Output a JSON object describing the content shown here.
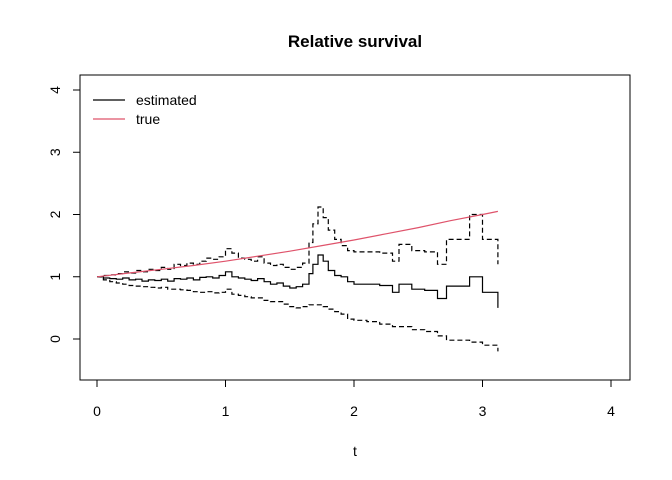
{
  "chart_data": {
    "type": "line",
    "title": "Relative survival",
    "xlabel": "t",
    "ylabel": "",
    "xlim": [
      0,
      4
    ],
    "ylim": [
      -0.6,
      4.2
    ],
    "x_ticks": [
      "0",
      "1",
      "2",
      "3",
      "4"
    ],
    "y_ticks": [
      "0",
      "1",
      "2",
      "3",
      "4"
    ],
    "grid": false,
    "legend_position": "top-left",
    "colors": {
      "estimated": "#000000",
      "true": "#DF536B",
      "ci": "#000000"
    },
    "legend": [
      {
        "name": "estimated",
        "color": "#000000",
        "style": "solid"
      },
      {
        "name": "true",
        "color": "#DF536B",
        "style": "solid"
      }
    ],
    "series": [
      {
        "name": "estimated",
        "role": "estimate",
        "step": true,
        "dash": false,
        "x": [
          0,
          0.05,
          0.1,
          0.15,
          0.2,
          0.25,
          0.3,
          0.35,
          0.4,
          0.45,
          0.5,
          0.55,
          0.6,
          0.65,
          0.7,
          0.75,
          0.8,
          0.85,
          0.9,
          0.95,
          1.0,
          1.05,
          1.1,
          1.15,
          1.2,
          1.25,
          1.3,
          1.35,
          1.4,
          1.45,
          1.5,
          1.55,
          1.6,
          1.65,
          1.68,
          1.72,
          1.76,
          1.8,
          1.85,
          1.9,
          1.95,
          2.0,
          2.1,
          2.2,
          2.3,
          2.35,
          2.45,
          2.55,
          2.65,
          2.72,
          2.9,
          3.0,
          3.12
        ],
        "y": [
          1.0,
          0.98,
          0.97,
          0.96,
          0.98,
          0.95,
          0.96,
          0.93,
          0.95,
          0.94,
          0.96,
          0.93,
          0.97,
          0.96,
          0.98,
          0.95,
          0.99,
          1.0,
          0.98,
          1.02,
          1.08,
          1.0,
          0.98,
          0.96,
          0.94,
          0.97,
          0.92,
          0.88,
          0.9,
          0.85,
          0.82,
          0.84,
          0.88,
          1.05,
          1.2,
          1.35,
          1.25,
          1.1,
          1.02,
          1.0,
          0.92,
          0.88,
          0.88,
          0.86,
          0.75,
          0.88,
          0.8,
          0.78,
          0.65,
          0.85,
          1.0,
          0.75,
          0.5
        ]
      },
      {
        "name": "upper CI",
        "role": "ci",
        "step": true,
        "dash": true,
        "x": [
          0,
          0.05,
          0.1,
          0.15,
          0.2,
          0.25,
          0.3,
          0.35,
          0.4,
          0.45,
          0.5,
          0.55,
          0.6,
          0.65,
          0.7,
          0.75,
          0.8,
          0.85,
          0.9,
          0.95,
          1.0,
          1.05,
          1.1,
          1.15,
          1.2,
          1.25,
          1.3,
          1.35,
          1.4,
          1.45,
          1.5,
          1.55,
          1.6,
          1.65,
          1.68,
          1.72,
          1.76,
          1.8,
          1.85,
          1.9,
          1.95,
          2.0,
          2.1,
          2.2,
          2.3,
          2.35,
          2.45,
          2.55,
          2.65,
          2.72,
          2.9,
          3.0,
          3.12
        ],
        "y": [
          1.0,
          1.02,
          1.03,
          1.05,
          1.08,
          1.06,
          1.1,
          1.08,
          1.12,
          1.1,
          1.15,
          1.12,
          1.2,
          1.18,
          1.22,
          1.2,
          1.25,
          1.3,
          1.28,
          1.32,
          1.45,
          1.38,
          1.3,
          1.28,
          1.25,
          1.32,
          1.22,
          1.18,
          1.2,
          1.15,
          1.12,
          1.15,
          1.22,
          1.55,
          1.85,
          2.12,
          1.95,
          1.75,
          1.6,
          1.5,
          1.42,
          1.4,
          1.4,
          1.38,
          1.25,
          1.52,
          1.42,
          1.4,
          1.2,
          1.6,
          2.0,
          1.6,
          1.2
        ]
      },
      {
        "name": "lower CI",
        "role": "ci",
        "step": true,
        "dash": true,
        "x": [
          0,
          0.05,
          0.1,
          0.15,
          0.2,
          0.25,
          0.3,
          0.35,
          0.4,
          0.45,
          0.5,
          0.55,
          0.6,
          0.65,
          0.7,
          0.75,
          0.8,
          0.85,
          0.9,
          0.95,
          1.0,
          1.05,
          1.1,
          1.15,
          1.2,
          1.25,
          1.3,
          1.35,
          1.4,
          1.45,
          1.5,
          1.55,
          1.6,
          1.65,
          1.68,
          1.72,
          1.76,
          1.8,
          1.85,
          1.9,
          1.95,
          2.0,
          2.1,
          2.2,
          2.3,
          2.35,
          2.45,
          2.55,
          2.65,
          2.72,
          2.9,
          3.0,
          3.12
        ],
        "y": [
          1.0,
          0.95,
          0.92,
          0.9,
          0.88,
          0.86,
          0.85,
          0.84,
          0.83,
          0.82,
          0.83,
          0.8,
          0.8,
          0.79,
          0.78,
          0.76,
          0.75,
          0.76,
          0.74,
          0.75,
          0.8,
          0.72,
          0.7,
          0.68,
          0.66,
          0.66,
          0.62,
          0.6,
          0.6,
          0.56,
          0.52,
          0.5,
          0.52,
          0.55,
          0.55,
          0.55,
          0.52,
          0.48,
          0.44,
          0.4,
          0.32,
          0.3,
          0.28,
          0.24,
          0.2,
          0.2,
          0.15,
          0.12,
          0.05,
          -0.02,
          -0.05,
          -0.1,
          -0.2
        ]
      },
      {
        "name": "true",
        "role": "true",
        "step": false,
        "dash": false,
        "x": [
          0,
          0.25,
          0.5,
          0.75,
          1.0,
          1.25,
          1.5,
          1.75,
          2.0,
          2.25,
          2.5,
          2.75,
          3.0,
          3.12
        ],
        "y": [
          1.0,
          1.06,
          1.12,
          1.18,
          1.25,
          1.33,
          1.41,
          1.5,
          1.59,
          1.69,
          1.79,
          1.9,
          2.0,
          2.05
        ]
      }
    ]
  }
}
